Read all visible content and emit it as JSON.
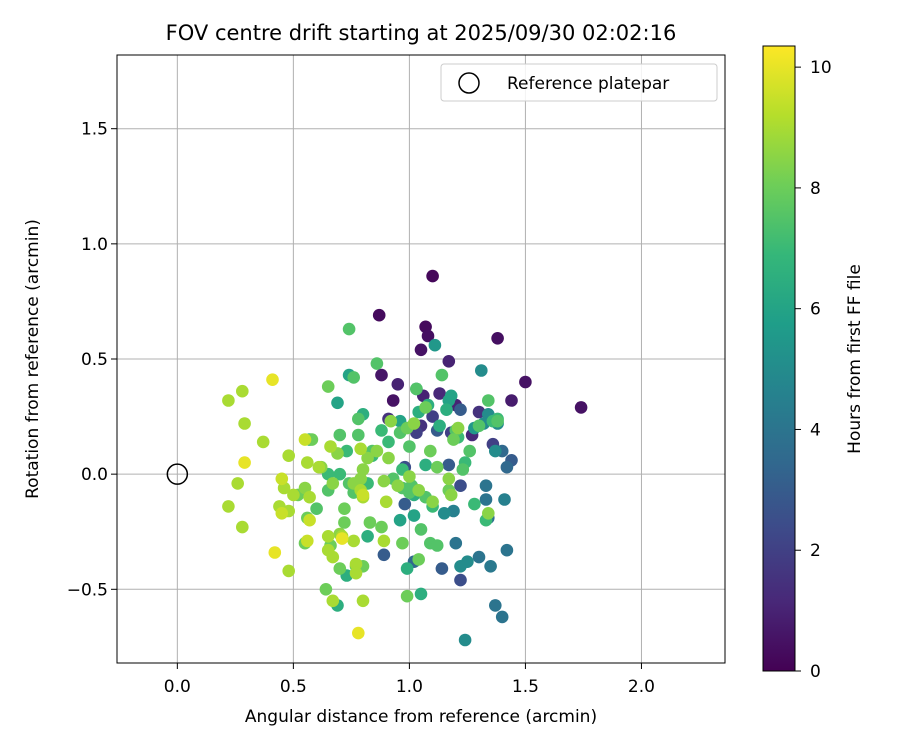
{
  "chart_data": {
    "type": "scatter",
    "title": "FOV centre drift starting at 2025/09/30 02:02:16",
    "xlabel": "Angular distance from reference (arcmin)",
    "ylabel": "Rotation from reference (arcmin)",
    "xlim": [
      -0.26,
      2.36
    ],
    "ylim": [
      -0.82,
      1.82
    ],
    "xticks": [
      0.0,
      0.5,
      1.0,
      1.5,
      2.0
    ],
    "xtick_labels": [
      "0.0",
      "0.5",
      "1.0",
      "1.5",
      "2.0"
    ],
    "yticks": [
      -0.5,
      0.0,
      0.5,
      1.0,
      1.5
    ],
    "ytick_labels": [
      "−0.5",
      "0.0",
      "0.5",
      "1.0",
      "1.5"
    ],
    "grid": true,
    "legend": {
      "position": "top-right",
      "entries": [
        "Reference platepar"
      ]
    },
    "reference_point": {
      "x": 0.0,
      "y": 0.0,
      "label": "Reference platepar"
    },
    "colorbar": {
      "label": "Hours from first FF file",
      "range": [
        0,
        10.35
      ],
      "ticks": [
        0,
        2,
        4,
        6,
        8,
        10
      ],
      "tick_labels": [
        "0",
        "2",
        "4",
        "6",
        "8",
        "10"
      ],
      "colormap": "viridis",
      "stops": [
        "#440154",
        "#482878",
        "#3e4989",
        "#31688e",
        "#26828e",
        "#1f9e89",
        "#35b779",
        "#6ece58",
        "#b5de2b",
        "#fde725"
      ]
    },
    "points": [
      [
        1.1,
        0.86,
        0.2
      ],
      [
        0.87,
        0.69,
        0.3
      ],
      [
        1.07,
        0.64,
        0.3
      ],
      [
        1.08,
        0.6,
        0.4
      ],
      [
        1.05,
        0.54,
        0.5
      ],
      [
        1.38,
        0.59,
        0.4
      ],
      [
        1.5,
        0.4,
        0.5
      ],
      [
        1.74,
        0.29,
        0.5
      ],
      [
        0.88,
        0.43,
        0.6
      ],
      [
        0.93,
        0.32,
        0.5
      ],
      [
        1.44,
        0.32,
        0.8
      ],
      [
        1.17,
        0.49,
        1.0
      ],
      [
        1.06,
        0.34,
        1.0
      ],
      [
        1.13,
        0.35,
        1.2
      ],
      [
        1.3,
        0.27,
        1.5
      ],
      [
        0.95,
        0.39,
        1.0
      ],
      [
        1.2,
        0.3,
        1.0
      ],
      [
        1.27,
        0.17,
        1.2
      ],
      [
        1.05,
        0.21,
        1.5
      ],
      [
        0.91,
        0.24,
        1.5
      ],
      [
        1.18,
        0.18,
        2.0
      ],
      [
        1.1,
        0.25,
        2.0
      ],
      [
        1.03,
        0.18,
        2.0
      ],
      [
        1.36,
        0.13,
        2.0
      ],
      [
        0.98,
        0.03,
        2.5
      ],
      [
        1.22,
        -0.05,
        2.5
      ],
      [
        1.44,
        0.06,
        3.0
      ],
      [
        1.12,
        0.19,
        3.0
      ],
      [
        1.17,
        0.04,
        3.0
      ],
      [
        1.22,
        0.28,
        3.0
      ],
      [
        1.4,
        0.1,
        3.5
      ],
      [
        1.42,
        0.03,
        3.5
      ],
      [
        0.98,
        -0.13,
        3.0
      ],
      [
        0.89,
        -0.35,
        3.0
      ],
      [
        1.02,
        -0.38,
        3.5
      ],
      [
        1.14,
        -0.41,
        3.0
      ],
      [
        1.22,
        -0.46,
        2.5
      ],
      [
        1.34,
        -0.19,
        3.8
      ],
      [
        1.37,
        -0.57,
        4.0
      ],
      [
        1.4,
        -0.62,
        4.0
      ],
      [
        1.42,
        -0.33,
        4.0
      ],
      [
        1.3,
        -0.36,
        4.0
      ],
      [
        1.35,
        -0.4,
        4.2
      ],
      [
        1.2,
        -0.3,
        4.0
      ],
      [
        1.24,
        -0.72,
        5.0
      ],
      [
        1.33,
        -0.11,
        4.0
      ],
      [
        1.41,
        -0.11,
        4.5
      ],
      [
        1.33,
        -0.05,
        4.0
      ],
      [
        1.19,
        -0.16,
        4.5
      ],
      [
        1.15,
        -0.17,
        5.0
      ],
      [
        1.25,
        -0.38,
        5.0
      ],
      [
        1.22,
        -0.4,
        5.0
      ],
      [
        1.31,
        0.45,
        5.0
      ],
      [
        1.34,
        0.26,
        5.0
      ],
      [
        1.38,
        0.22,
        5.0
      ],
      [
        1.37,
        0.1,
        5.0
      ],
      [
        1.32,
        0.22,
        5.0
      ],
      [
        1.28,
        0.2,
        5.5
      ],
      [
        1.11,
        0.56,
        5.5
      ],
      [
        1.03,
        0.37,
        5.5
      ],
      [
        0.96,
        0.23,
        6.0
      ],
      [
        0.69,
        0.31,
        6.0
      ],
      [
        0.74,
        0.43,
        6.0
      ],
      [
        0.8,
        0.26,
        6.5
      ],
      [
        1.17,
        0.32,
        6.0
      ],
      [
        1.13,
        0.21,
        6.5
      ],
      [
        1.16,
        0.28,
        6.5
      ],
      [
        1.18,
        0.34,
        6.0
      ],
      [
        1.08,
        0.3,
        6.5
      ],
      [
        1.04,
        0.27,
        6.5
      ],
      [
        1.07,
        0.04,
        6.5
      ],
      [
        1.02,
        -0.09,
        6.5
      ],
      [
        0.96,
        -0.2,
        6.0
      ],
      [
        1.02,
        -0.18,
        6.0
      ],
      [
        0.99,
        -0.41,
        6.5
      ],
      [
        1.05,
        -0.52,
        6.5
      ],
      [
        0.69,
        -0.57,
        6.5
      ],
      [
        0.73,
        -0.44,
        6.5
      ],
      [
        0.82,
        -0.27,
        6.5
      ],
      [
        0.57,
        0.15,
        6.5
      ],
      [
        0.73,
        0.1,
        7.0
      ],
      [
        0.82,
        -0.04,
        7.0
      ],
      [
        0.97,
        0.02,
        7.0
      ],
      [
        1.1,
        -0.14,
        7.0
      ],
      [
        1.21,
        0.16,
        7.0
      ],
      [
        1.24,
        0.05,
        7.0
      ],
      [
        1.28,
        -0.13,
        7.0
      ],
      [
        1.33,
        -0.2,
        7.0
      ],
      [
        1.36,
        0.23,
        7.0
      ],
      [
        1.38,
        0.24,
        7.0
      ],
      [
        0.91,
        0.14,
        7.0
      ],
      [
        0.88,
        0.19,
        7.0
      ],
      [
        0.84,
        0.08,
        7.0
      ],
      [
        0.7,
        0.0,
        7.0
      ],
      [
        0.65,
        0.0,
        7.0
      ],
      [
        0.78,
        0.17,
        7.5
      ],
      [
        0.86,
        0.48,
        7.5
      ],
      [
        0.76,
        0.42,
        7.5
      ],
      [
        0.74,
        0.63,
        7.5
      ],
      [
        0.78,
        0.24,
        7.5
      ],
      [
        0.7,
        0.17,
        7.5
      ],
      [
        0.65,
        -0.07,
        7.5
      ],
      [
        0.6,
        -0.15,
        7.5
      ],
      [
        0.74,
        -0.04,
        7.5
      ],
      [
        0.76,
        -0.08,
        7.5
      ],
      [
        0.84,
        0.1,
        7.5
      ],
      [
        0.93,
        -0.02,
        7.5
      ],
      [
        0.97,
        -0.06,
        7.5
      ],
      [
        1.01,
        -0.05,
        7.5
      ],
      [
        1.0,
        -0.08,
        7.5
      ],
      [
        1.05,
        -0.24,
        7.5
      ],
      [
        1.07,
        -0.1,
        7.5
      ],
      [
        1.09,
        -0.3,
        7.5
      ],
      [
        1.12,
        -0.31,
        7.5
      ],
      [
        1.14,
        0.43,
        7.5
      ],
      [
        1.2,
        0.19,
        7.5
      ],
      [
        1.23,
        0.02,
        7.5
      ],
      [
        1.26,
        0.1,
        7.5
      ],
      [
        1.3,
        0.21,
        7.5
      ],
      [
        1.34,
        0.32,
        7.5
      ],
      [
        1.38,
        0.23,
        7.5
      ],
      [
        0.96,
        0.18,
        7.5
      ],
      [
        1.03,
        0.37,
        7.5
      ],
      [
        1.0,
        0.12,
        7.5
      ],
      [
        0.99,
        0.2,
        8.0
      ],
      [
        1.07,
        0.29,
        8.0
      ],
      [
        1.09,
        0.1,
        8.0
      ],
      [
        1.12,
        0.03,
        8.0
      ],
      [
        1.17,
        -0.07,
        8.0
      ],
      [
        1.19,
        0.15,
        8.0
      ],
      [
        0.65,
        0.38,
        8.0
      ],
      [
        0.7,
        -0.41,
        8.0
      ],
      [
        0.77,
        -0.4,
        8.0
      ],
      [
        0.8,
        -0.4,
        8.0
      ],
      [
        0.88,
        -0.23,
        8.0
      ],
      [
        0.83,
        -0.21,
        8.0
      ],
      [
        0.97,
        -0.3,
        8.0
      ],
      [
        1.04,
        -0.37,
        8.0
      ],
      [
        0.99,
        -0.53,
        8.0
      ],
      [
        0.64,
        -0.5,
        8.0
      ],
      [
        0.72,
        -0.21,
        8.0
      ],
      [
        0.72,
        -0.15,
        8.0
      ],
      [
        0.66,
        -0.31,
        8.0
      ],
      [
        0.56,
        -0.19,
        8.0
      ],
      [
        0.55,
        -0.3,
        8.0
      ],
      [
        0.52,
        -0.09,
        8.0
      ],
      [
        0.58,
        0.15,
        8.0
      ],
      [
        0.55,
        -0.06,
        8.5
      ],
      [
        0.62,
        0.03,
        8.5
      ],
      [
        0.67,
        -0.04,
        8.5
      ],
      [
        0.69,
        0.09,
        8.5
      ],
      [
        0.76,
        -0.04,
        8.5
      ],
      [
        0.79,
        -0.02,
        8.5
      ],
      [
        0.8,
        0.02,
        8.5
      ],
      [
        0.82,
        0.07,
        8.5
      ],
      [
        0.86,
        0.1,
        8.5
      ],
      [
        0.89,
        -0.03,
        8.5
      ],
      [
        0.91,
        0.07,
        8.5
      ],
      [
        0.95,
        -0.05,
        8.5
      ],
      [
        1.0,
        -0.01,
        8.5
      ],
      [
        1.04,
        -0.07,
        8.5
      ],
      [
        1.1,
        -0.12,
        8.5
      ],
      [
        1.18,
        -0.09,
        8.5
      ],
      [
        1.21,
        0.2,
        8.5
      ],
      [
        1.34,
        -0.17,
        8.5
      ],
      [
        1.17,
        -0.02,
        8.5
      ],
      [
        1.02,
        0.22,
        8.5
      ],
      [
        0.92,
        0.23,
        8.5
      ],
      [
        0.7,
        -0.26,
        8.5
      ],
      [
        0.48,
        0.08,
        9.0
      ],
      [
        0.56,
        0.05,
        9.0
      ],
      [
        0.61,
        0.03,
        9.0
      ],
      [
        0.66,
        0.12,
        9.0
      ],
      [
        0.65,
        -0.27,
        9.0
      ],
      [
        0.67,
        -0.36,
        9.0
      ],
      [
        0.76,
        -0.29,
        9.0
      ],
      [
        0.77,
        -0.39,
        9.0
      ],
      [
        0.77,
        -0.43,
        9.0
      ],
      [
        0.8,
        -0.55,
        9.0
      ],
      [
        0.71,
        -0.27,
        9.0
      ],
      [
        0.65,
        -0.33,
        9.0
      ],
      [
        0.57,
        -0.1,
        9.0
      ],
      [
        0.5,
        -0.09,
        9.0
      ],
      [
        0.48,
        -0.16,
        9.0
      ],
      [
        0.46,
        -0.06,
        9.0
      ],
      [
        0.44,
        -0.14,
        9.0
      ],
      [
        0.37,
        0.14,
        9.0
      ],
      [
        0.28,
        0.36,
        9.0
      ],
      [
        0.22,
        0.32,
        9.0
      ],
      [
        0.29,
        0.22,
        9.0
      ],
      [
        0.26,
        -0.04,
        9.0
      ],
      [
        0.22,
        -0.14,
        9.0
      ],
      [
        0.28,
        -0.23,
        9.0
      ],
      [
        0.48,
        -0.42,
        9.0
      ],
      [
        0.67,
        -0.55,
        9.0
      ],
      [
        0.9,
        -0.12,
        9.0
      ],
      [
        0.89,
        -0.29,
        9.0
      ],
      [
        0.8,
        -0.1,
        9.0
      ],
      [
        0.79,
        0.11,
        9.0
      ],
      [
        0.79,
        -0.07,
        9.0
      ],
      [
        0.8,
        -0.09,
        9.5
      ],
      [
        0.57,
        -0.2,
        9.5
      ],
      [
        0.45,
        -0.02,
        9.5
      ],
      [
        0.45,
        -0.17,
        9.5
      ],
      [
        0.56,
        -0.29,
        9.5
      ],
      [
        0.55,
        0.15,
        9.5
      ],
      [
        0.71,
        -0.28,
        10.0
      ],
      [
        0.78,
        -0.69,
        10.0
      ],
      [
        0.42,
        -0.34,
        10.0
      ],
      [
        0.29,
        0.05,
        10.0
      ],
      [
        0.41,
        0.41,
        10.0
      ]
    ]
  }
}
